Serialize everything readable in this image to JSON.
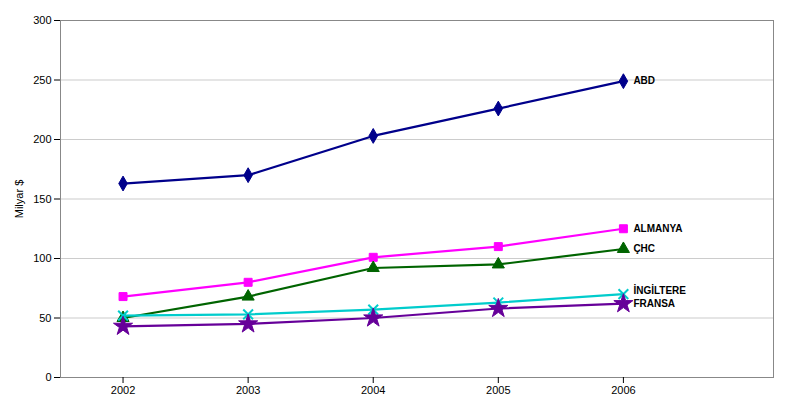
{
  "chart_data": {
    "type": "line",
    "x": [
      2002,
      2003,
      2004,
      2005,
      2006
    ],
    "series": [
      {
        "name": "ABD",
        "color": "#00008B",
        "marker": "diamond",
        "values": [
          163,
          170,
          203,
          226,
          249
        ]
      },
      {
        "name": "ALMANYA",
        "color": "#FF00FF",
        "marker": "square",
        "values": [
          68,
          80,
          101,
          110,
          125
        ]
      },
      {
        "name": "ÇHC",
        "color": "#006400",
        "marker": "triangle",
        "values": [
          50,
          68,
          92,
          95,
          108
        ]
      },
      {
        "name": "İNGİLTERE",
        "color": "#00CCCC",
        "marker": "x",
        "values": [
          52,
          53,
          57,
          63,
          70
        ]
      },
      {
        "name": "FRANSA",
        "color": "#660099",
        "marker": "star",
        "values": [
          43,
          45,
          50,
          58,
          62
        ]
      }
    ],
    "ylabel": "Milyar $",
    "xlim": [
      2001.5,
      2007.2
    ],
    "xticks": [
      2002,
      2003,
      2004,
      2005,
      2006
    ],
    "ylim": [
      0,
      300
    ],
    "yticks": [
      0,
      50,
      100,
      150,
      200,
      250,
      300
    ],
    "grid": true
  }
}
